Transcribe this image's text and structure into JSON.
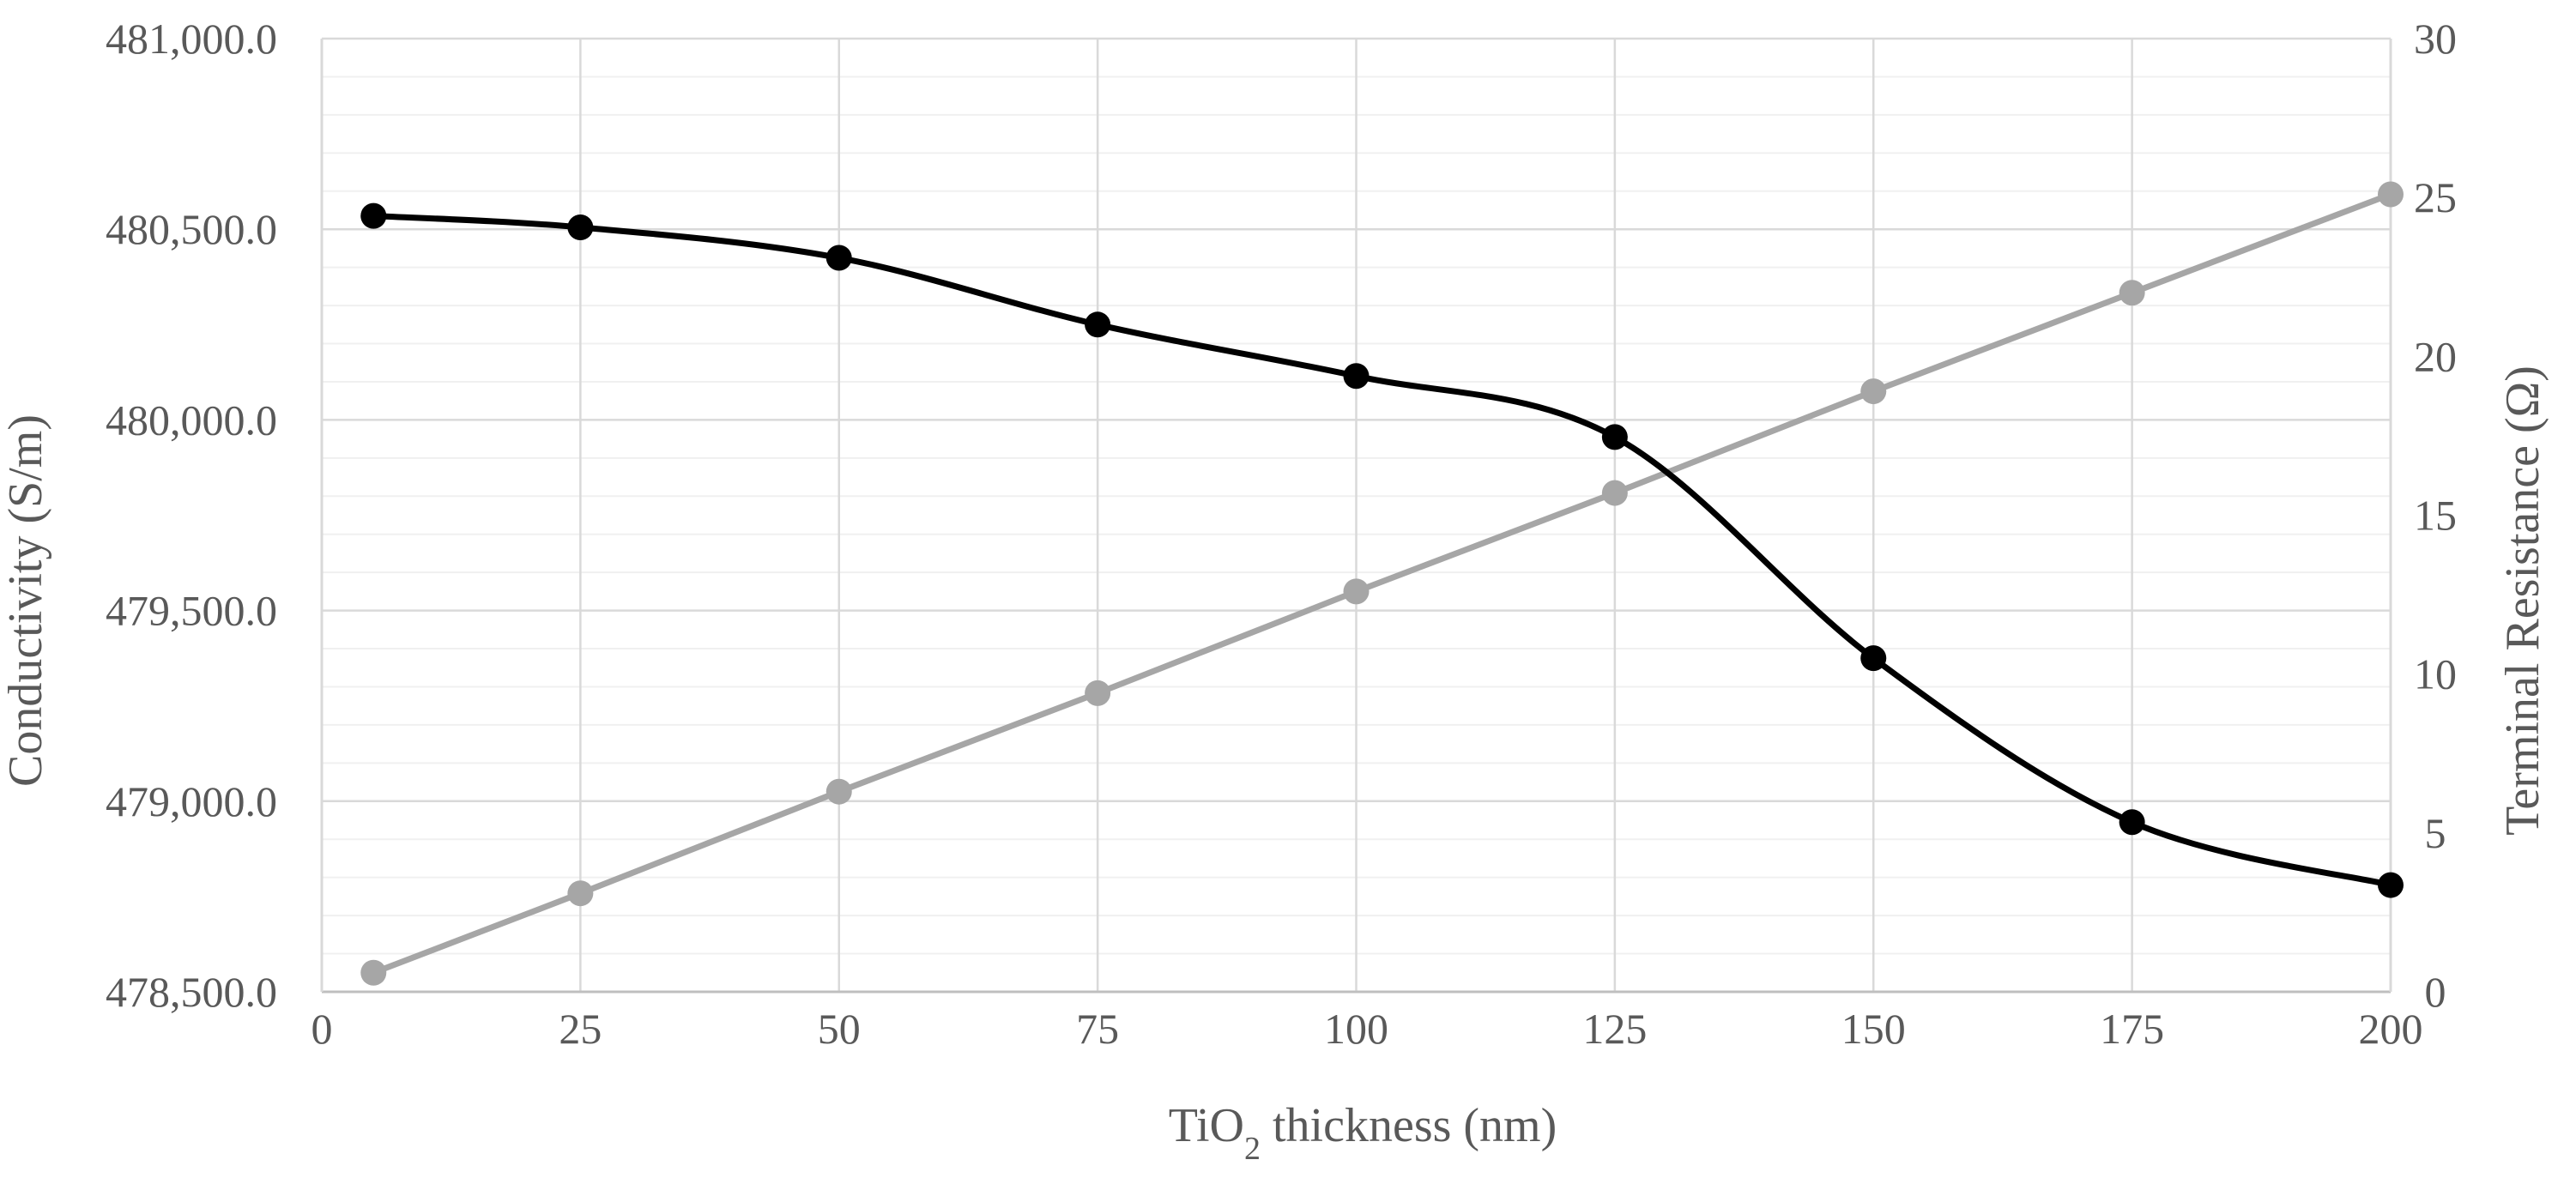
{
  "chart_data": {
    "type": "line",
    "x": [
      5,
      25,
      50,
      75,
      100,
      125,
      150,
      175,
      200
    ],
    "xlim": [
      0,
      200
    ],
    "x_ticks": [
      0,
      25,
      50,
      75,
      100,
      125,
      150,
      175,
      200
    ],
    "x_tick_labels": [
      "0",
      "25",
      "50",
      "75",
      "100",
      "125",
      "150",
      "175",
      "200"
    ],
    "xlabel": {
      "prefix": "TiO",
      "sub": "2",
      "suffix": " thickness (nm)"
    },
    "ylabel": "Conductivity (S/m)",
    "ylim": [
      478500,
      481000
    ],
    "y_ticks": [
      478500,
      479000,
      479500,
      480000,
      480500,
      481000
    ],
    "y_tick_labels": [
      "478,500.0",
      "479,000.0",
      "479,500.0",
      "480,000.0",
      "480,500.0",
      "481,000.0"
    ],
    "y2label": "Terminal Resistance (Ω)",
    "y2lim": [
      0,
      30
    ],
    "y2_ticks": [
      0,
      5,
      10,
      15,
      20,
      25,
      30
    ],
    "y2_tick_labels": [
      "0",
      "5",
      "10",
      "15",
      "20",
      "25",
      "30"
    ],
    "grid": true,
    "series": [
      {
        "axis": "left",
        "color": "#000000",
        "smooth": true,
        "values": [
          480535,
          480505,
          480425,
          480250,
          480115,
          479955,
          479375,
          478945,
          478780
        ]
      },
      {
        "axis": "right",
        "color": "#a6a6a6",
        "smooth": false,
        "values": [
          0.6,
          3.1,
          6.3,
          9.4,
          12.6,
          15.7,
          18.9,
          22.0,
          25.1
        ]
      }
    ]
  }
}
